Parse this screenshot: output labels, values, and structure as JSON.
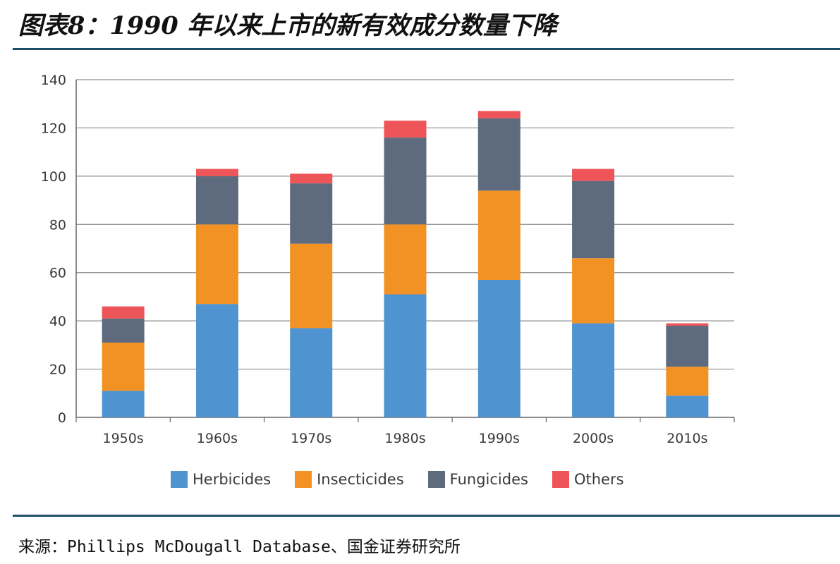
{
  "header": {
    "title": "图表8：1990 年以来上市的新有效成分数量下降"
  },
  "footer": {
    "source": "来源：Phillips McDougall Database、国金证券研究所"
  },
  "chart_data": {
    "type": "bar",
    "stacked": true,
    "categories": [
      "1950s",
      "1960s",
      "1970s",
      "1980s",
      "1990s",
      "2000s",
      "2010s"
    ],
    "series": [
      {
        "name": "Herbicides",
        "color": "#4f94d0",
        "values": [
          11,
          47,
          37,
          51,
          57,
          39,
          9
        ]
      },
      {
        "name": "Insecticides",
        "color": "#f39224",
        "values": [
          20,
          33,
          35,
          29,
          37,
          27,
          12
        ]
      },
      {
        "name": "Fungicides",
        "color": "#5e6b7f",
        "values": [
          10,
          20,
          25,
          36,
          30,
          32,
          17
        ]
      },
      {
        "name": "Others",
        "color": "#ee5558",
        "values": [
          5,
          3,
          4,
          7,
          3,
          5,
          1
        ]
      }
    ],
    "yticks": [
      "0",
      "20",
      "40",
      "60",
      "80",
      "100",
      "120",
      "140"
    ],
    "ylim": [
      0,
      140
    ],
    "grid": true,
    "legend_position": "bottom"
  }
}
